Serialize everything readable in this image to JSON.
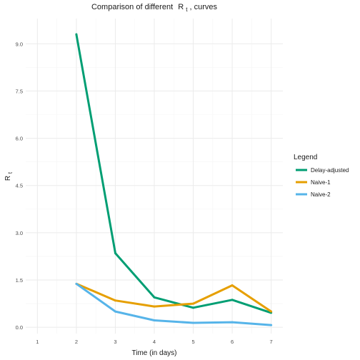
{
  "chart_data": {
    "type": "line",
    "title_prefix": "Comparison of different",
    "title_symbol": "R",
    "title_subscript": "t",
    "title_suffix": ", curves",
    "xlabel": "Time (in days)",
    "ylabel_symbol": "R",
    "ylabel_subscript": "t",
    "x_ticks": [
      1,
      2,
      3,
      4,
      5,
      6,
      7
    ],
    "x_tick_labels": [
      "1",
      "2",
      "3",
      "4",
      "5",
      "6",
      "7"
    ],
    "y_ticks": [
      0,
      1.5,
      3,
      4.5,
      6,
      7.5,
      9
    ],
    "y_tick_labels": [
      "0.0",
      "1.5",
      "3.0",
      "4.5",
      "6.0",
      "7.5",
      "9.0"
    ],
    "xlim": [
      0.7,
      7.3
    ],
    "ylim": [
      -0.2,
      9.8
    ],
    "grid": true,
    "legend_title": "Legend",
    "legend_position": "right",
    "series": [
      {
        "name": "Delay-adjusted",
        "color": "#009E73",
        "x": [
          2,
          3,
          4,
          5,
          6,
          7
        ],
        "values": [
          9.3,
          2.35,
          0.95,
          0.62,
          0.87,
          0.46
        ]
      },
      {
        "name": "Naive-1",
        "color": "#E69F00",
        "x": [
          2,
          3,
          4,
          5,
          6,
          7
        ],
        "values": [
          1.38,
          0.85,
          0.66,
          0.75,
          1.33,
          0.5
        ]
      },
      {
        "name": "Naive-2",
        "color": "#56B4E9",
        "x": [
          2,
          3,
          4,
          5,
          6,
          7
        ],
        "values": [
          1.38,
          0.5,
          0.22,
          0.14,
          0.16,
          0.07
        ]
      }
    ]
  }
}
